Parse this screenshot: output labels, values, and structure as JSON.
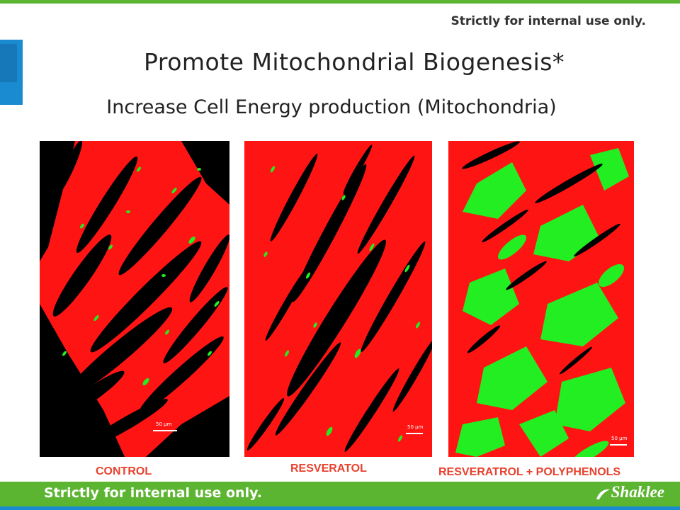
{
  "header": {
    "notice": "Strictly for internal use only."
  },
  "slide": {
    "title": "Promote Mitochondrial Biogenesis*",
    "subtitle": "Increase Cell Energy production (Mitochondria)"
  },
  "panels": [
    {
      "caption": "CONTROL",
      "scale_label": "50 µm"
    },
    {
      "caption": "RESVERATOL",
      "scale_label": "50 µm"
    },
    {
      "caption": "RESVERATROL + POLYPHENOLS",
      "scale_label": "50 µm"
    }
  ],
  "footer": {
    "notice": "Strictly for internal use only.",
    "logo": "Shaklee"
  },
  "colors": {
    "brand_green": "#5cb531",
    "brand_blue": "#1a8bd0",
    "caption_red": "#e8412e",
    "cell_red": "#ff1414",
    "mito_green": "#22ee22"
  }
}
